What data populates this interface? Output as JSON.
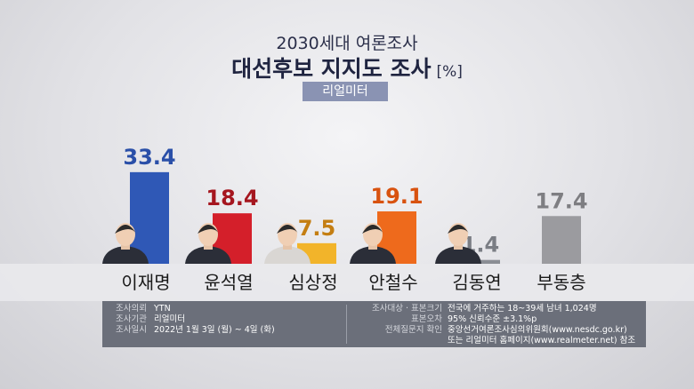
{
  "header": {
    "subtitle": "2030세대 여론조사",
    "title": "대선후보 지지도 조사",
    "unit": "[%]",
    "source_badge": "리얼미터"
  },
  "chart_data": {
    "type": "bar",
    "title": "대선후보 지지도 조사",
    "subtitle": "2030세대 여론조사",
    "unit": "[%]",
    "categories": [
      "이재명",
      "윤석열",
      "심상정",
      "안철수",
      "김동연",
      "부동층"
    ],
    "values": [
      33.4,
      18.4,
      7.5,
      19.1,
      1.4,
      17.4
    ],
    "value_labels": [
      "33.4",
      "18.4",
      "7.5",
      "19.1",
      "1.4",
      "17.4"
    ],
    "colors": [
      "#2f58b6",
      "#d41f2a",
      "#f2b42a",
      "#ee6a1c",
      "#8a8d94",
      "#9b9b9f"
    ],
    "label_colors": [
      "#2a4fa8",
      "#a5161f",
      "#c47e12",
      "#d8520f",
      "#7a7d84",
      "#7e7e82"
    ],
    "ylim": [
      0,
      34
    ],
    "grid": false
  },
  "info": {
    "left": [
      {
        "label": "조사의뢰",
        "value": "YTN"
      },
      {
        "label": "조사기관",
        "value": "리얼미터"
      },
      {
        "label": "조사일시",
        "value": "2022년 1월 3일 (월) ~ 4일 (화)"
      }
    ],
    "right": [
      {
        "label": "조사대상 · 표본크기",
        "value": "전국에 거주하는 18~39세 남녀 1,024명"
      },
      {
        "label": "표본오차",
        "value": "95% 신뢰수준 ±3.1%p"
      },
      {
        "label": "전체질문지 확인",
        "value": "중앙선거여론조사심의위원회(www.nesdc.go.kr)"
      },
      {
        "label": "",
        "value": "또는 리얼미터 홈페이지(www.realmeter.net) 참조"
      }
    ]
  }
}
